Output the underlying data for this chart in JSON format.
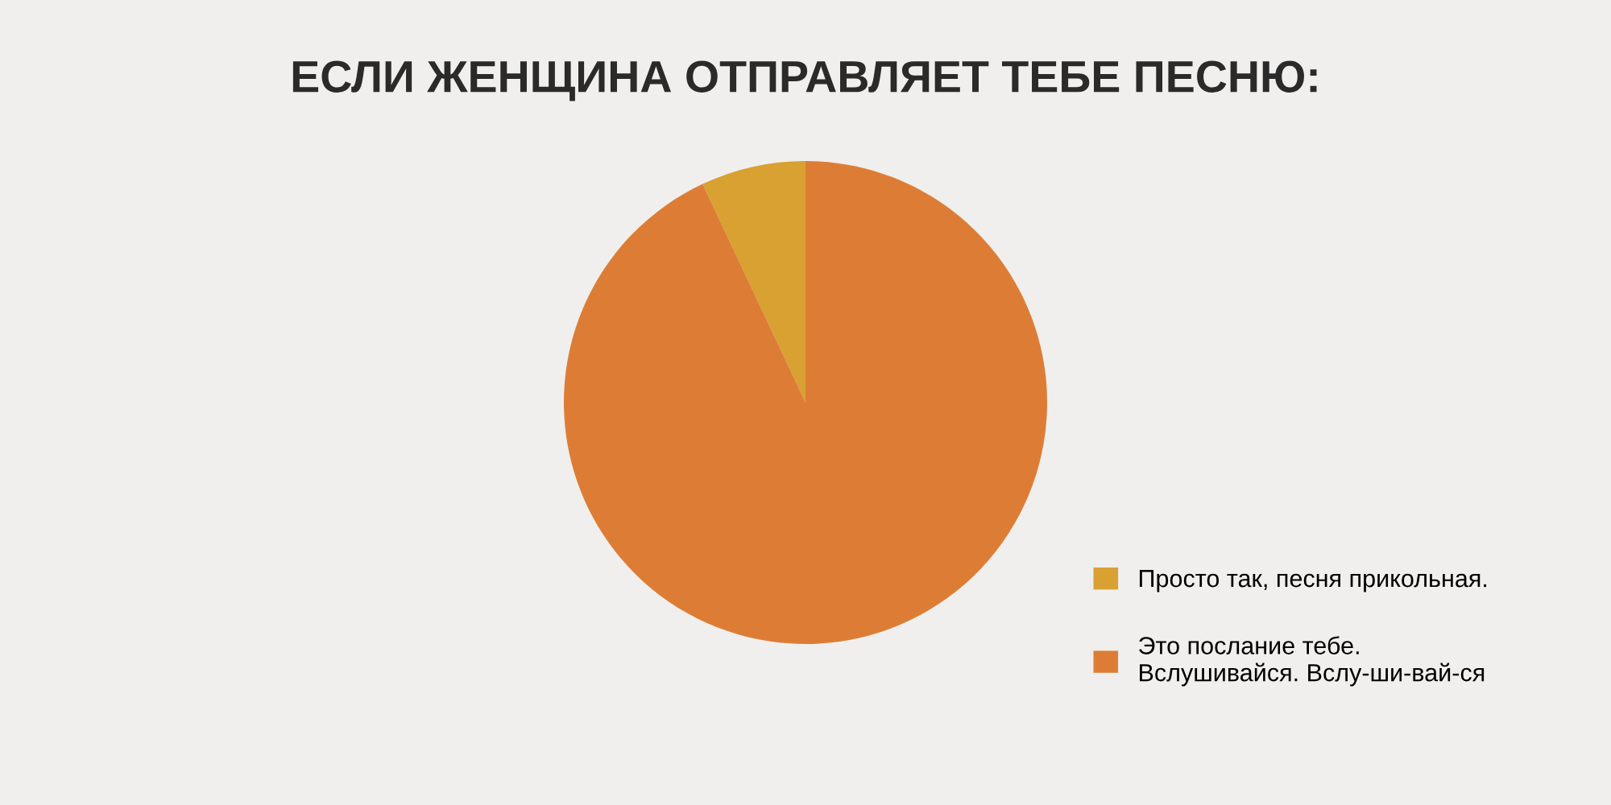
{
  "chart_data": {
    "type": "pie",
    "title": "ЕСЛИ ЖЕНЩИНА ОТПРАВЛЯЕТ ТЕБЕ ПЕСНЮ:",
    "categories": [
      "Просто так, песня прикольная.",
      "Это послание тебе.\nВслушивайся. Вслу-ши-вай-ся"
    ],
    "values": [
      7,
      93
    ],
    "colors": [
      "#d9a032",
      "#dd7d35"
    ],
    "legend": "bottom right"
  }
}
